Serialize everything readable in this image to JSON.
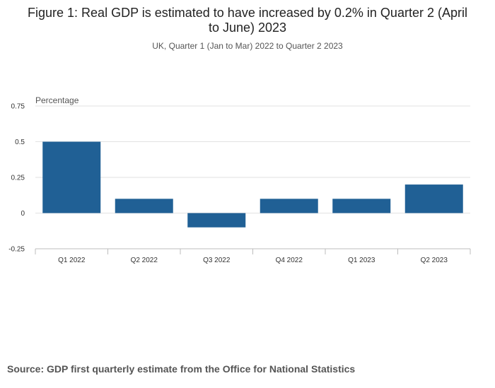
{
  "header": {
    "title": "Figure 1: Real GDP is estimated to have increased by 0.2% in Quarter 2 (April to June) 2023",
    "subtitle": "UK, Quarter 1 (Jan to Mar) 2022 to Quarter 2 2023"
  },
  "footer": {
    "source": "Source: GDP first quarterly estimate from the Office for National Statistics"
  },
  "chart_data": {
    "type": "bar",
    "title": "Figure 1: Real GDP is estimated to have increased by 0.2% in Quarter 2 (April to June) 2023",
    "subtitle": "UK, Quarter 1 (Jan to Mar) 2022 to Quarter 2 2023",
    "ylabel": "Percentage",
    "xlabel": "",
    "categories": [
      "Q1 2022",
      "Q2 2022",
      "Q3 2022",
      "Q4 2022",
      "Q1 2023",
      "Q2 2023"
    ],
    "values": [
      0.5,
      0.1,
      -0.1,
      0.1,
      0.1,
      0.2
    ],
    "ylim": [
      -0.25,
      0.75
    ],
    "yticks": [
      0.75,
      0.5,
      0.25,
      0,
      -0.25
    ],
    "ytick_labels": [
      "0.75",
      "0.5",
      "0.25",
      "0",
      "-0.25"
    ],
    "grid": true,
    "legend": "none",
    "bar_color": "#206095",
    "source": "Source: GDP first quarterly estimate from the Office for National Statistics"
  }
}
